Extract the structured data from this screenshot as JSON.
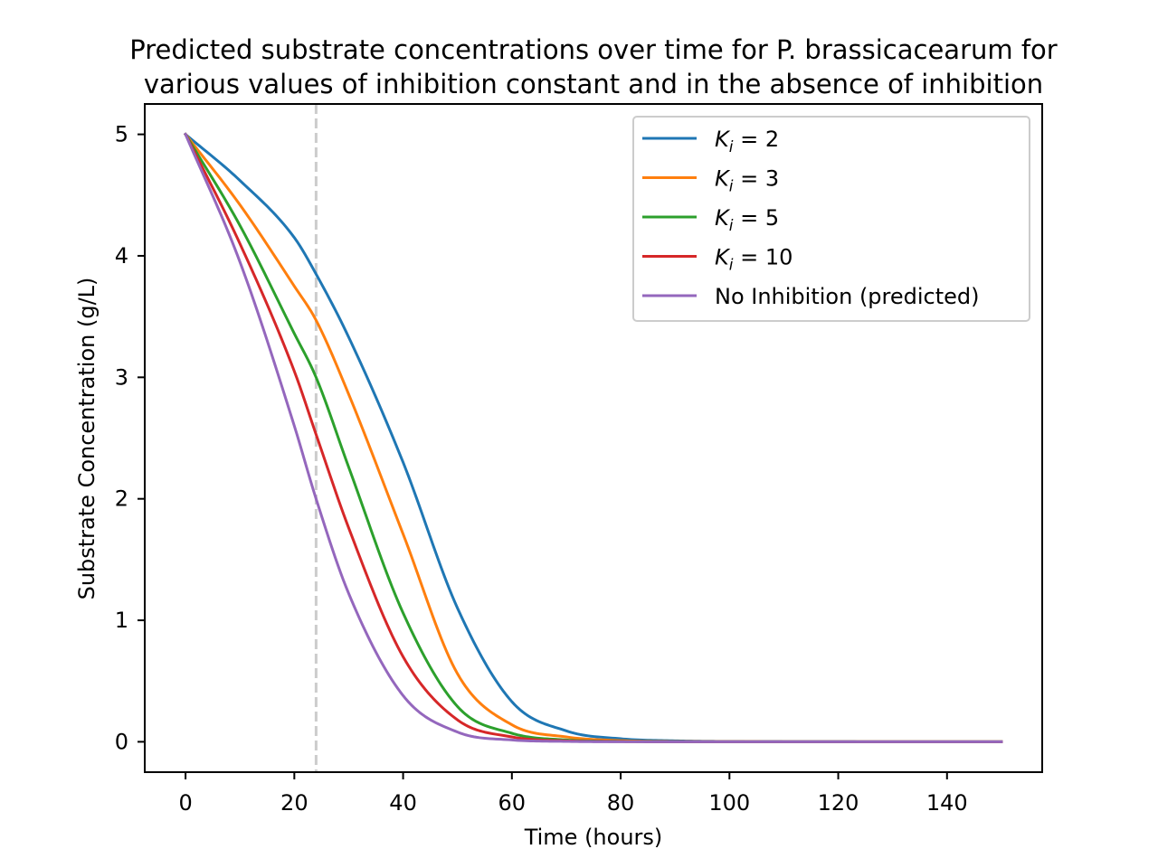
{
  "chart_data": {
    "type": "line",
    "title": "Predicted substrate concentrations over time for P. brassicacearum for various values of inhibition constant and in the absence of inhibition",
    "title_lines": [
      "Predicted substrate concentrations over time for P. brassicacearum for",
      "various values of inhibition constant and in the absence of inhibition"
    ],
    "xlabel": "Time (hours)",
    "ylabel": "Substrate Concentration (g/L)",
    "xlim": [
      -7.5,
      157.5
    ],
    "ylim": [
      -0.25,
      5.25
    ],
    "xticks": [
      0,
      20,
      40,
      60,
      80,
      100,
      120,
      140
    ],
    "yticks": [
      0,
      1,
      2,
      3,
      4,
      5
    ],
    "grid": false,
    "legend_position": "upper right",
    "vline": {
      "x": 24,
      "style": "dashed",
      "color": "#cccccc"
    },
    "x": [
      0,
      10,
      20,
      24,
      30,
      40,
      50,
      60,
      70,
      80,
      90,
      100,
      150
    ],
    "series": [
      {
        "name": "K_i = 2",
        "legend_label": {
          "base": "K",
          "sub": "i",
          "rest": " = 2"
        },
        "color": "#1f77b4",
        "values": [
          5,
          4.62,
          4.15,
          3.85,
          3.33,
          2.3,
          1.1,
          0.33,
          0.09,
          0.025,
          0.008,
          0.003,
          0
        ]
      },
      {
        "name": "K_i = 3",
        "legend_label": {
          "base": "K",
          "sub": "i",
          "rest": " = 3"
        },
        "color": "#ff7f0e",
        "values": [
          5,
          4.42,
          3.75,
          3.47,
          2.86,
          1.71,
          0.56,
          0.14,
          0.04,
          0.01,
          0.003,
          0.001,
          0
        ]
      },
      {
        "name": "K_i = 5",
        "legend_label": {
          "base": "K",
          "sub": "i",
          "rest": " = 5"
        },
        "color": "#2ca02c",
        "values": [
          5,
          4.25,
          3.36,
          3.0,
          2.26,
          1.06,
          0.29,
          0.07,
          0.015,
          0.004,
          0.001,
          0,
          0
        ]
      },
      {
        "name": "K_i = 10",
        "legend_label": {
          "base": "K",
          "sub": "i",
          "rest": " = 10"
        },
        "color": "#d62728",
        "values": [
          5,
          4.1,
          3.05,
          2.53,
          1.76,
          0.7,
          0.18,
          0.04,
          0.008,
          0.002,
          0,
          0,
          0
        ]
      },
      {
        "name": "No Inhibition (predicted)",
        "legend_label": {
          "base": "No Inhibition (predicted)",
          "sub": "",
          "rest": ""
        },
        "color": "#9467bd",
        "values": [
          5,
          3.95,
          2.6,
          2.0,
          1.22,
          0.38,
          0.08,
          0.015,
          0.003,
          0,
          0,
          0,
          0
        ]
      }
    ]
  }
}
